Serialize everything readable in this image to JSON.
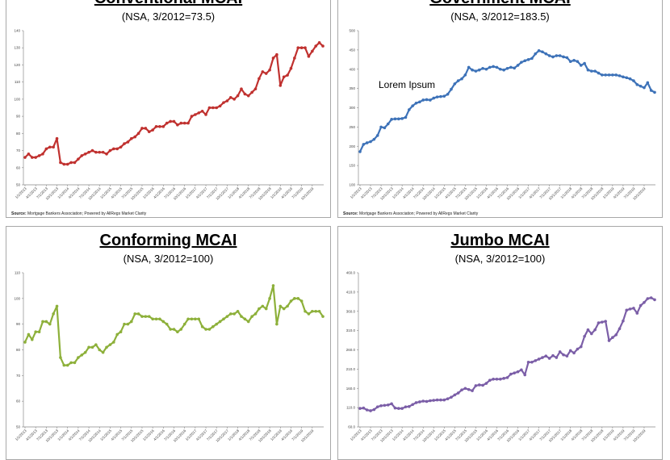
{
  "source": {
    "label": "Source:",
    "text": "Mortgage Bankers Association; Powered by AllRegs Market Clarity"
  },
  "chart_data": [
    {
      "type": "line",
      "title": "Conventional MCAI",
      "subtitle": "(NSA, 3/2012=73.5)",
      "color": "#c0312f",
      "ylim": [
        50,
        140
      ],
      "yticks": [
        "50",
        "60",
        "70",
        "80",
        "90",
        "100",
        "110",
        "120",
        "130",
        "140"
      ],
      "xticks": [
        "1/1/2013",
        "4/1/2013",
        "7/1/2013",
        "10/1/2013",
        "1/1/2014",
        "4/1/2014",
        "7/1/2014",
        "10/1/2014",
        "1/1/2015",
        "4/1/2015",
        "7/1/2015",
        "10/1/2015",
        "1/1/2016",
        "4/1/2016",
        "7/1/2016",
        "10/1/2016",
        "1/1/2017",
        "4/1/2017",
        "7/1/2017",
        "10/1/2017",
        "1/1/2018",
        "4/1/2018",
        "7/1/2018",
        "10/1/2018",
        "1/1/2019",
        "4/1/2019",
        "7/1/2019",
        "10/1/2019"
      ],
      "x_start": "1/1/2013",
      "x_step": "monthly",
      "values": [
        66,
        68,
        66,
        66,
        67,
        68,
        71,
        72,
        72,
        77,
        63,
        62,
        62,
        63,
        63,
        65,
        67,
        68,
        69,
        70,
        69,
        69,
        69,
        68,
        70,
        71,
        71,
        72,
        74,
        75,
        77,
        78,
        80,
        83,
        83,
        81,
        82,
        84,
        84,
        84,
        86,
        87,
        87,
        85,
        86,
        86,
        86,
        90,
        91,
        92,
        93,
        91,
        95,
        95,
        95,
        96,
        98,
        99,
        101,
        100,
        102,
        106,
        103,
        102,
        104,
        106,
        112,
        116,
        115,
        117,
        124,
        126,
        108,
        113,
        114,
        118,
        124,
        130,
        130,
        130,
        125,
        128,
        131,
        133,
        131
      ]
    },
    {
      "type": "line",
      "title": "Government MCAI",
      "subtitle": "(NSA, 3/2012=183.5)",
      "annotation": "Lorem Ipsum",
      "color": "#3d72b8",
      "ylim": [
        100,
        500
      ],
      "yticks": [
        "100",
        "150",
        "200",
        "250",
        "300",
        "350",
        "400",
        "450",
        "500"
      ],
      "xticks": [
        "1/1/2013",
        "4/1/2013",
        "7/1/2013",
        "10/1/2013",
        "1/1/2014",
        "4/1/2014",
        "7/1/2014",
        "10/1/2014",
        "1/1/2015",
        "4/1/2015",
        "7/1/2015",
        "10/1/2015",
        "1/1/2016",
        "4/1/2016",
        "7/1/2016",
        "10/1/2016",
        "1/1/2017",
        "4/1/2017",
        "7/1/2017",
        "10/1/2017",
        "1/1/2018",
        "4/1/2018",
        "7/1/2018",
        "10/1/2018",
        "1/1/2019",
        "4/1/2019",
        "7/1/2019",
        "10/1/2019"
      ],
      "x_start": "1/1/2013",
      "x_step": "monthly",
      "values": [
        186,
        205,
        209,
        212,
        218,
        228,
        250,
        248,
        258,
        270,
        271,
        271,
        272,
        275,
        295,
        305,
        312,
        315,
        320,
        321,
        320,
        325,
        328,
        329,
        330,
        335,
        348,
        362,
        370,
        375,
        385,
        405,
        398,
        395,
        398,
        402,
        400,
        405,
        407,
        405,
        400,
        398,
        402,
        405,
        403,
        410,
        418,
        422,
        425,
        428,
        440,
        448,
        445,
        440,
        435,
        432,
        435,
        435,
        432,
        430,
        420,
        423,
        420,
        410,
        415,
        398,
        395,
        395,
        390,
        385,
        385,
        385,
        385,
        385,
        383,
        380,
        378,
        375,
        370,
        360,
        356,
        352,
        365,
        345,
        340
      ]
    },
    {
      "type": "line",
      "title": "Conforming MCAI",
      "subtitle": "(NSA, 3/2012=100)",
      "color": "#8db03a",
      "ylim": [
        50,
        110
      ],
      "yticks": [
        "50",
        "60",
        "70",
        "80",
        "90",
        "100",
        "110"
      ],
      "xticks": [
        "1/1/2013",
        "4/1/2013",
        "7/1/2013",
        "10/1/2013",
        "1/1/2014",
        "4/1/2014",
        "7/1/2014",
        "10/1/2014",
        "1/1/2015",
        "4/1/2015",
        "7/1/2015",
        "10/1/2015",
        "1/1/2016",
        "4/1/2016",
        "7/1/2016",
        "10/1/2016",
        "1/1/2017",
        "4/1/2017",
        "7/1/2017",
        "10/1/2017",
        "1/1/2018",
        "4/1/2018",
        "7/1/2018",
        "10/1/2018",
        "1/1/2019",
        "4/1/2019",
        "7/1/2019",
        "10/1/2019"
      ],
      "x_start": "1/1/2013",
      "x_step": "monthly",
      "values": [
        83,
        86,
        84,
        87,
        87,
        91,
        91,
        90,
        94,
        97,
        77,
        74,
        74,
        75,
        75,
        77,
        78,
        79,
        81,
        81,
        82,
        80,
        79,
        81,
        82,
        83,
        86,
        87,
        90,
        90,
        91,
        94,
        94,
        93,
        93,
        93,
        92,
        92,
        92,
        91,
        90,
        88,
        88,
        87,
        88,
        90,
        92,
        92,
        92,
        92,
        89,
        88,
        88,
        89,
        90,
        91,
        92,
        93,
        94,
        94,
        95,
        93,
        92,
        91,
        93,
        94,
        96,
        97,
        96,
        100,
        105,
        90,
        97,
        96,
        97,
        99,
        100,
        100,
        99,
        95,
        94,
        95,
        95,
        95,
        93
      ]
    },
    {
      "type": "line",
      "title": "Jumbo MCAI",
      "subtitle": "(NSA, 3/2012=100)",
      "color": "#7b5ea7",
      "ylim": [
        60,
        460
      ],
      "yticks": [
        "60.0",
        "110.0",
        "160.0",
        "210.0",
        "260.0",
        "310.0",
        "360.0",
        "410.0",
        "460.0"
      ],
      "xticks": [
        "1/1/2013",
        "4/1/2013",
        "7/1/2013",
        "10/1/2013",
        "1/1/2014",
        "4/1/2014",
        "7/1/2014",
        "10/1/2014",
        "1/1/2015",
        "4/1/2015",
        "7/1/2015",
        "10/1/2015",
        "1/1/2016",
        "4/1/2016",
        "7/1/2016",
        "10/1/2016",
        "1/1/2017",
        "4/1/2017",
        "7/1/2017",
        "10/1/2017",
        "1/1/2018",
        "4/1/2018",
        "7/1/2018",
        "10/1/2018",
        "1/1/2019",
        "4/1/2019",
        "7/1/2019",
        "10/1/2019"
      ],
      "x_start": "1/1/2013",
      "x_step": "monthly",
      "values": [
        108,
        109,
        104,
        102,
        105,
        112,
        115,
        116,
        117,
        120,
        109,
        108,
        108,
        112,
        113,
        118,
        123,
        125,
        127,
        126,
        128,
        129,
        130,
        130,
        130,
        133,
        137,
        143,
        148,
        156,
        160,
        157,
        154,
        167,
        169,
        168,
        173,
        181,
        184,
        184,
        184,
        186,
        188,
        197,
        200,
        203,
        208,
        195,
        228,
        228,
        232,
        236,
        240,
        244,
        238,
        245,
        240,
        255,
        247,
        244,
        258,
        252,
        262,
        268,
        295,
        312,
        302,
        312,
        330,
        332,
        334,
        284,
        292,
        299,
        315,
        335,
        363,
        366,
        368,
        355,
        375,
        383,
        393,
        395,
        390
      ]
    }
  ]
}
